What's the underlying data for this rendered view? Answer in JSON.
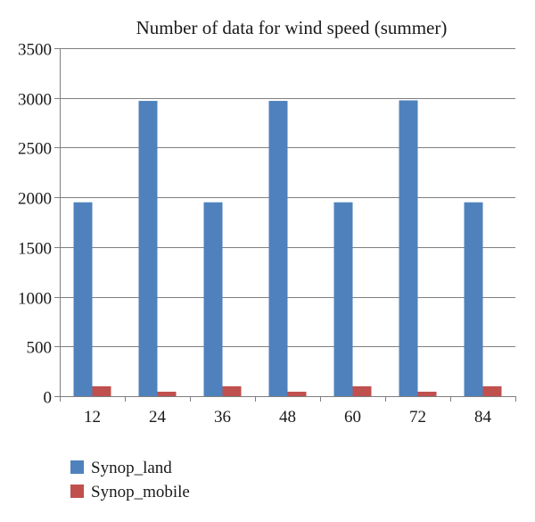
{
  "chart_data": {
    "type": "bar",
    "title": "Number of data for wind speed (summer)",
    "xlabel": "",
    "ylabel": "",
    "categories": [
      "12",
      "24",
      "36",
      "48",
      "60",
      "72",
      "84"
    ],
    "ylim": [
      0,
      3500
    ],
    "yticks": [
      0,
      500,
      1000,
      1500,
      2000,
      2500,
      3000,
      3500
    ],
    "grid": true,
    "legend_position": "bottom-left",
    "series": [
      {
        "name": "Synop_land",
        "color": "#4f81bd",
        "values": [
          1950,
          2970,
          1950,
          2970,
          1950,
          2975,
          1950
        ]
      },
      {
        "name": "Synop_mobile",
        "color": "#c0504d",
        "values": [
          100,
          45,
          100,
          45,
          100,
          45,
          100
        ]
      }
    ]
  }
}
